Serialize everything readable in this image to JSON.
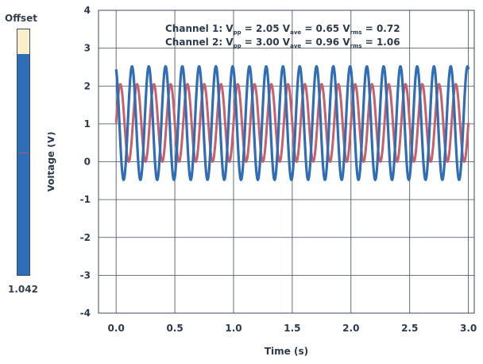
{
  "offset": {
    "title": "Offset",
    "value_label": "1.042",
    "level": 0.9
  },
  "colors": {
    "channel1": "#c95f6b",
    "channel2": "#2f6db6",
    "grid": "#3d4b60",
    "offset_fill": "#2f6db6",
    "offset_bg": "#fbeecb"
  },
  "chart_data": {
    "type": "line",
    "xlabel": "Time (s)",
    "ylabel": "Voltage (V)",
    "xlim": [
      -0.15,
      3.05
    ],
    "ylim": [
      -4,
      4
    ],
    "xticks": [
      "0.0",
      "0.5",
      "1.0",
      "1.5",
      "2.0",
      "2.5",
      "3.0"
    ],
    "yticks": [
      "-4",
      "-3",
      "-2",
      "-1",
      "0",
      "1",
      "2",
      "3",
      "4"
    ],
    "grid": true,
    "annotations": [
      {
        "parts": [
          {
            "t": "Channel 1: V"
          },
          {
            "t": "pp",
            "sub": true
          },
          {
            "t": " = 2.05   V"
          },
          {
            "t": "ave",
            "sub": true
          },
          {
            "t": " = 0.65   V"
          },
          {
            "t": "rms",
            "sub": true
          },
          {
            "t": " = 0.72"
          }
        ]
      },
      {
        "parts": [
          {
            "t": "Channel 2: V"
          },
          {
            "t": "pp",
            "sub": true
          },
          {
            "t": " = 3.00   V"
          },
          {
            "t": "ave",
            "sub": true
          },
          {
            "t": " = 0.96   V"
          },
          {
            "t": "rms",
            "sub": true
          },
          {
            "t": " = 1.06"
          }
        ]
      }
    ],
    "series": [
      {
        "color": "#c95f6b",
        "x_range": [
          0,
          3.0
        ],
        "min": 0.0,
        "max": 2.05,
        "frequency": 7.0,
        "phase": 0.0
      },
      {
        "color": "#2f6db6",
        "x_range": [
          0,
          3.0
        ],
        "min": -0.48,
        "max": 2.52,
        "frequency": 7.0,
        "phase": 1.9
      }
    ]
  }
}
